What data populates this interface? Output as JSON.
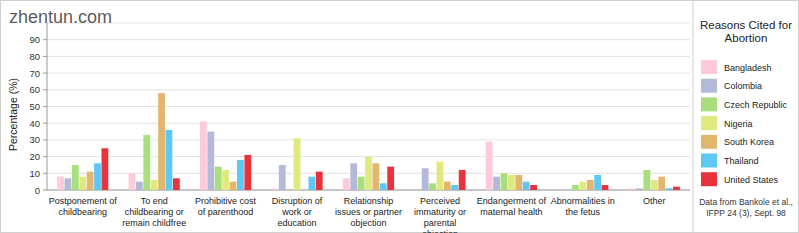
{
  "chart_data": {
    "type": "bar",
    "watermark": "zhentun.com",
    "y_label": "Percentage (%)",
    "legend_title": "Reasons Cited for Abortion",
    "source": "Data from Bankole et al., IFPP 24 (3), Sept. 98",
    "categories": [
      "Postponement of childbearing",
      "To end childbearing or remain childfree",
      "Prohibitive cost of parenthood",
      "Disruption of work or education",
      "Relationship issues or partner objection",
      "Perceived immaturity or parental objection",
      "Endangerment of maternal health",
      "Abnormalities in the fetus",
      "Other"
    ],
    "series": [
      {
        "name": "Bangladesh",
        "color": "#ffc9dc",
        "values": [
          8,
          10,
          41,
          1,
          7,
          0,
          29,
          0,
          1
        ]
      },
      {
        "name": "Colombia",
        "color": "#b3b9d9",
        "values": [
          7,
          5,
          35,
          15,
          16,
          13,
          8,
          0,
          1
        ]
      },
      {
        "name": "Czech Republic",
        "color": "#a8df7c",
        "values": [
          15,
          33,
          14,
          0,
          8,
          4,
          10,
          3,
          12
        ]
      },
      {
        "name": "Nigeria",
        "color": "#dfe97d",
        "values": [
          8,
          6,
          12,
          31,
          20,
          17,
          9,
          5,
          6
        ]
      },
      {
        "name": "South Korea",
        "color": "#e2b66c",
        "values": [
          11,
          58,
          5,
          0,
          16,
          5,
          9,
          6,
          8
        ]
      },
      {
        "name": "Thailand",
        "color": "#5ec7f2",
        "values": [
          16,
          36,
          18,
          8,
          4,
          3,
          5,
          9,
          1
        ]
      },
      {
        "name": "United States",
        "color": "#e8333d",
        "values": [
          25,
          7,
          21,
          11,
          14,
          12,
          3,
          3,
          2
        ]
      }
    ],
    "ylim": [
      0,
      100
    ],
    "yticks": [
      0,
      10,
      20,
      30,
      40,
      50,
      60,
      70,
      80,
      90
    ],
    "grid": true,
    "legend": "right"
  }
}
